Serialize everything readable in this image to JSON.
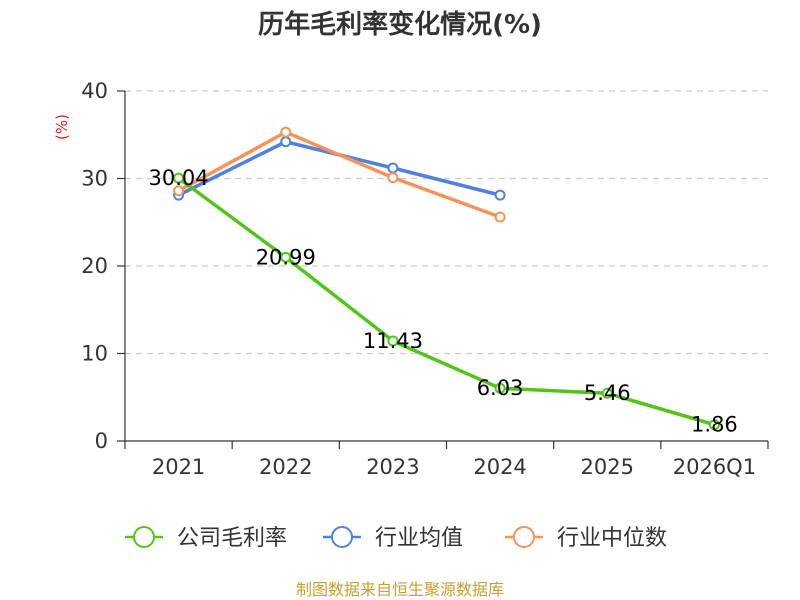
{
  "chart_data": {
    "type": "line",
    "title": "历年毛利率变化情况(%)",
    "ylabel": "(%)",
    "xlabel": "",
    "categories": [
      "2021",
      "2022",
      "2023",
      "2024",
      "2025",
      "2026Q1"
    ],
    "ylim": [
      0,
      40
    ],
    "yticks": [
      0,
      10,
      20,
      30,
      40
    ],
    "grid": true,
    "legend_position": "bottom",
    "series": [
      {
        "name": "公司毛利率",
        "color": "#52c41a",
        "values": [
          30.04,
          20.99,
          11.43,
          6.03,
          5.46,
          1.86
        ],
        "labels": [
          "30.04",
          "20.99",
          "11.43",
          "6.03",
          "5.46",
          "1.86"
        ]
      },
      {
        "name": "行业均值",
        "color": "#4f81e0",
        "values": [
          28.1,
          34.2,
          31.2,
          28.1,
          null,
          null
        ]
      },
      {
        "name": "行业中位数",
        "color": "#f79259",
        "values": [
          28.6,
          35.3,
          30.1,
          25.6,
          null,
          null
        ]
      }
    ],
    "source": "制图数据来自恒生聚源数据库"
  },
  "colors": {
    "title": "#333333",
    "axis": "#333333",
    "grid": "#cccccc",
    "unit": "#e02020",
    "source": "#c8a032"
  }
}
